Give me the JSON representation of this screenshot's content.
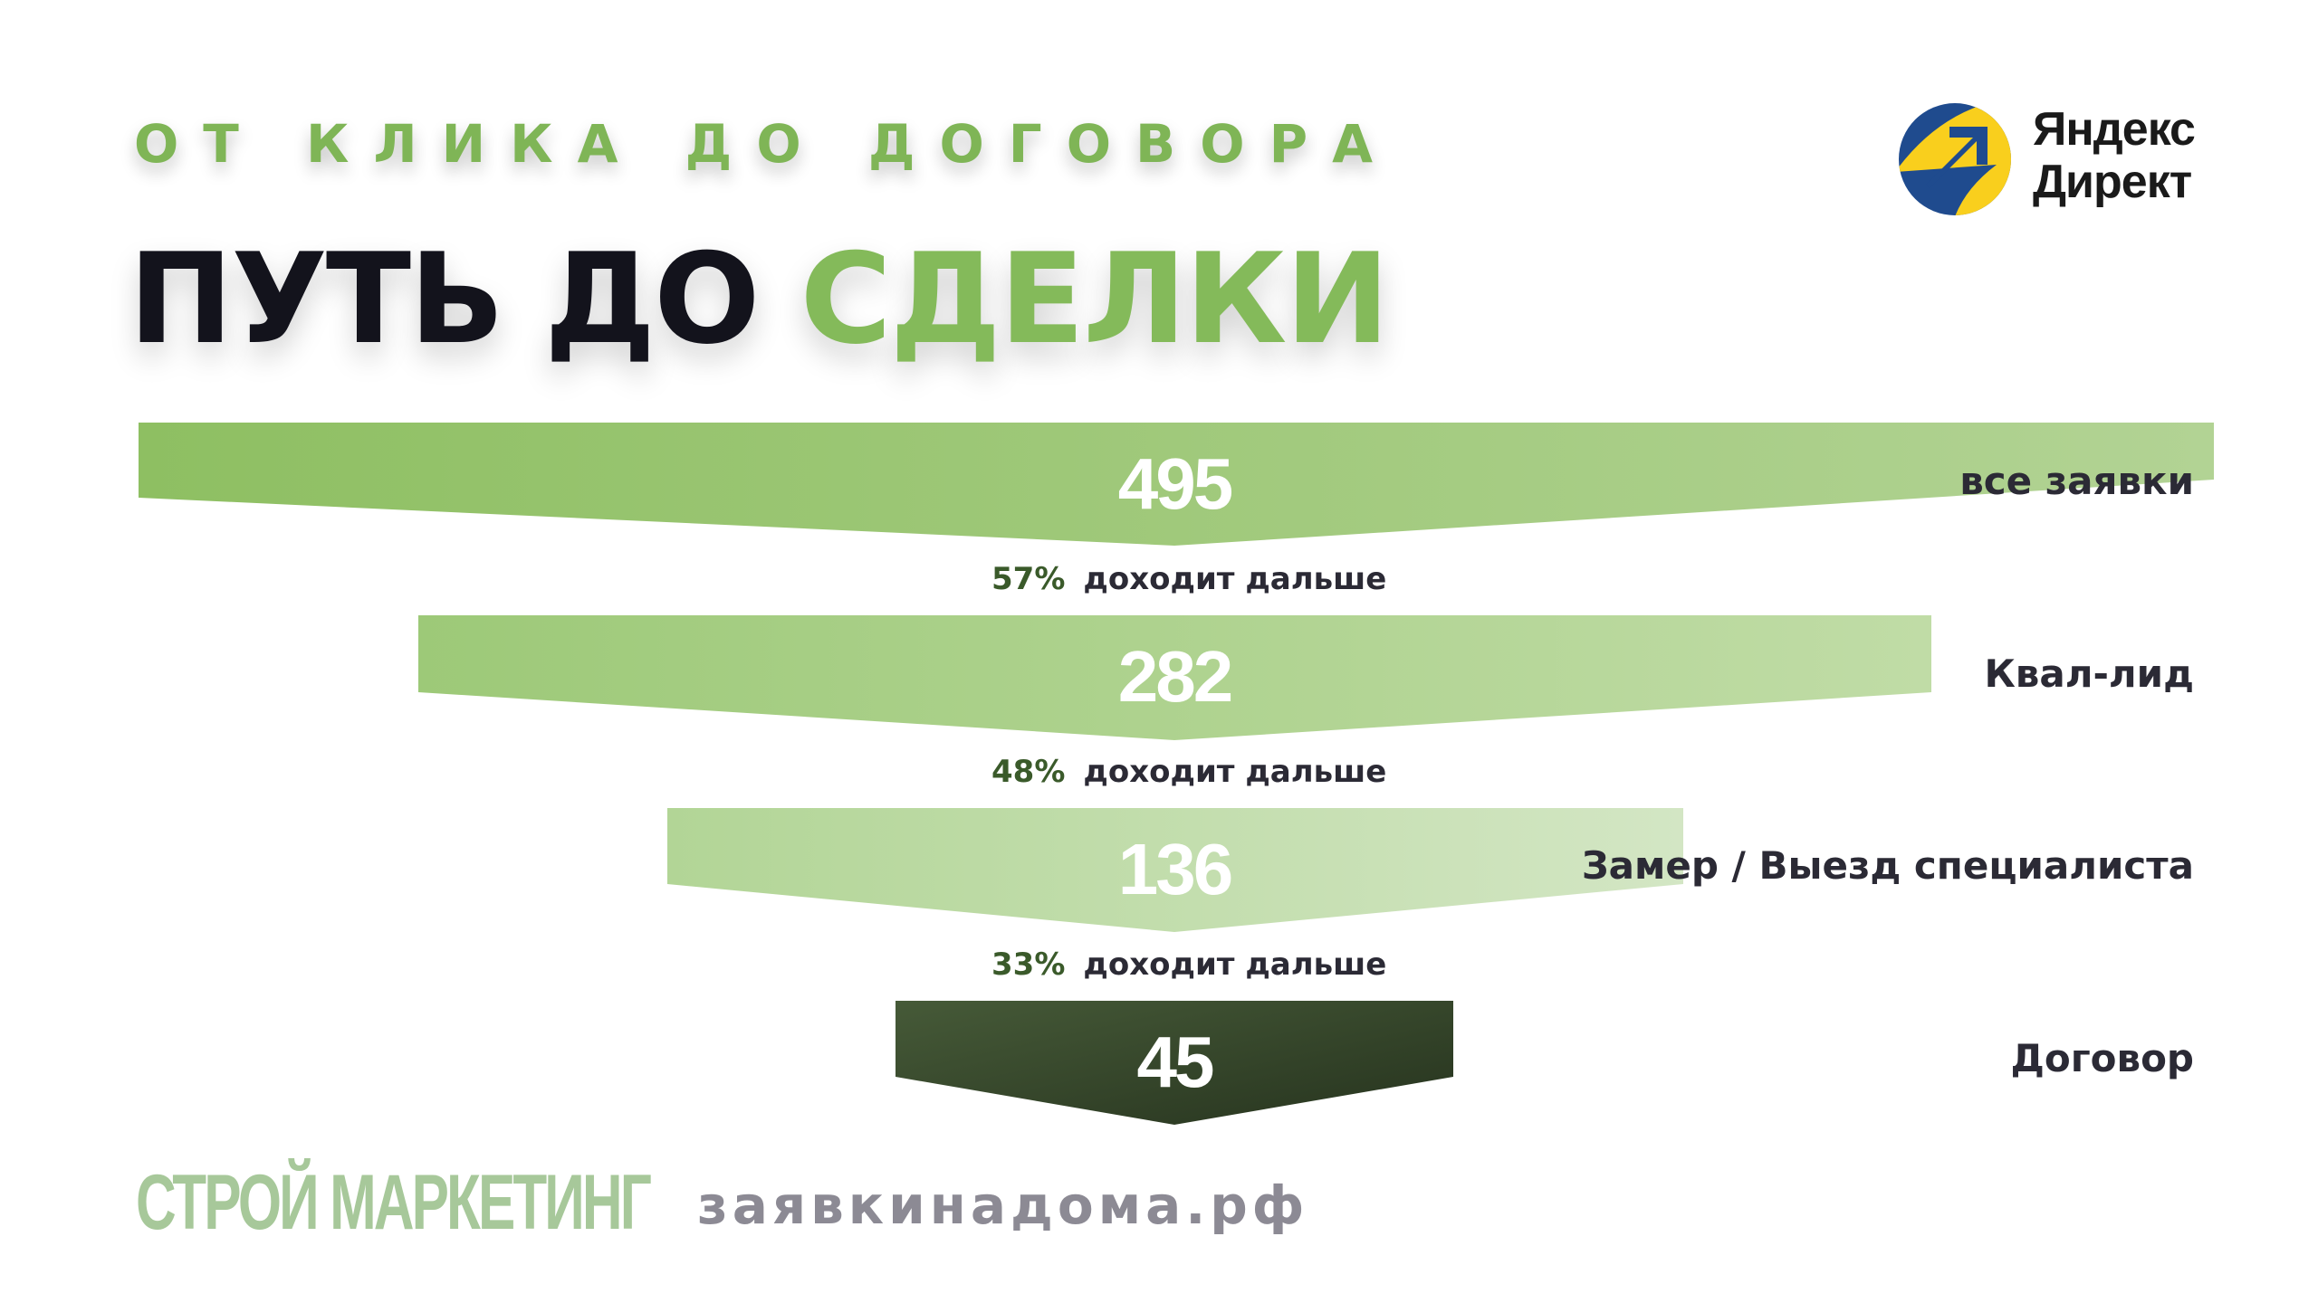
{
  "header": {
    "subtitle": "ОТ КЛИКА ДО ДОГОВОРА",
    "title_main": "ПУТЬ ДО",
    "title_accent": "СДЕЛКИ"
  },
  "logo": {
    "line1": "Яндекс",
    "line2": "Директ",
    "icon": "yandex-direct-arrow-icon"
  },
  "funnel": {
    "steps": [
      {
        "value": "495",
        "label": "все заявки"
      },
      {
        "value": "282",
        "label": "Квал-лид"
      },
      {
        "value": "136",
        "label": "Замер / Выезд специалиста"
      },
      {
        "value": "45",
        "label": "Договор"
      }
    ],
    "conversions": [
      {
        "percent": "57%",
        "text": "доходит дальше"
      },
      {
        "percent": "48%",
        "text": "доходит дальше"
      },
      {
        "percent": "33%",
        "text": "доходит дальше"
      }
    ]
  },
  "footer": {
    "brand": "СТРОЙ МАРКЕТИНГ",
    "site": "заявкинадома.рф"
  },
  "colors": {
    "accent": "#84ba5a",
    "dark_step": "#2f3e26",
    "title": "#13131c"
  }
}
